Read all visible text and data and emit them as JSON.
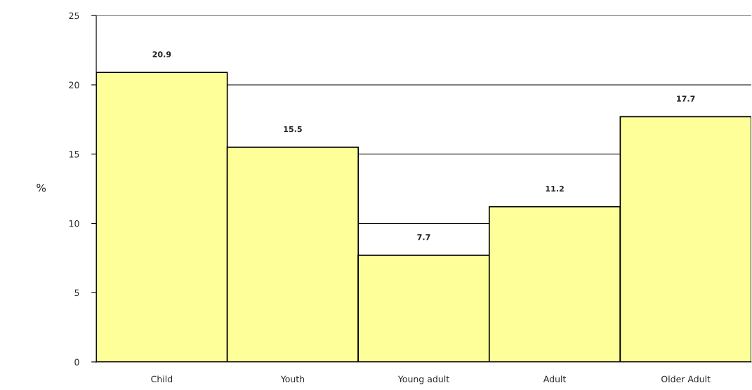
{
  "chart_data": {
    "type": "bar",
    "ylabel": "%",
    "categories": [
      "Child",
      "Youth",
      "Young adult",
      "Adult",
      "Older Adult"
    ],
    "values": [
      20.9,
      15.5,
      7.7,
      11.2,
      17.7
    ],
    "color": "#ffff99",
    "ylim": [
      0,
      25
    ],
    "yticks": [
      0,
      5,
      10,
      15,
      20,
      25
    ],
    "grid": "y",
    "data_labels": true,
    "legend": false
  }
}
